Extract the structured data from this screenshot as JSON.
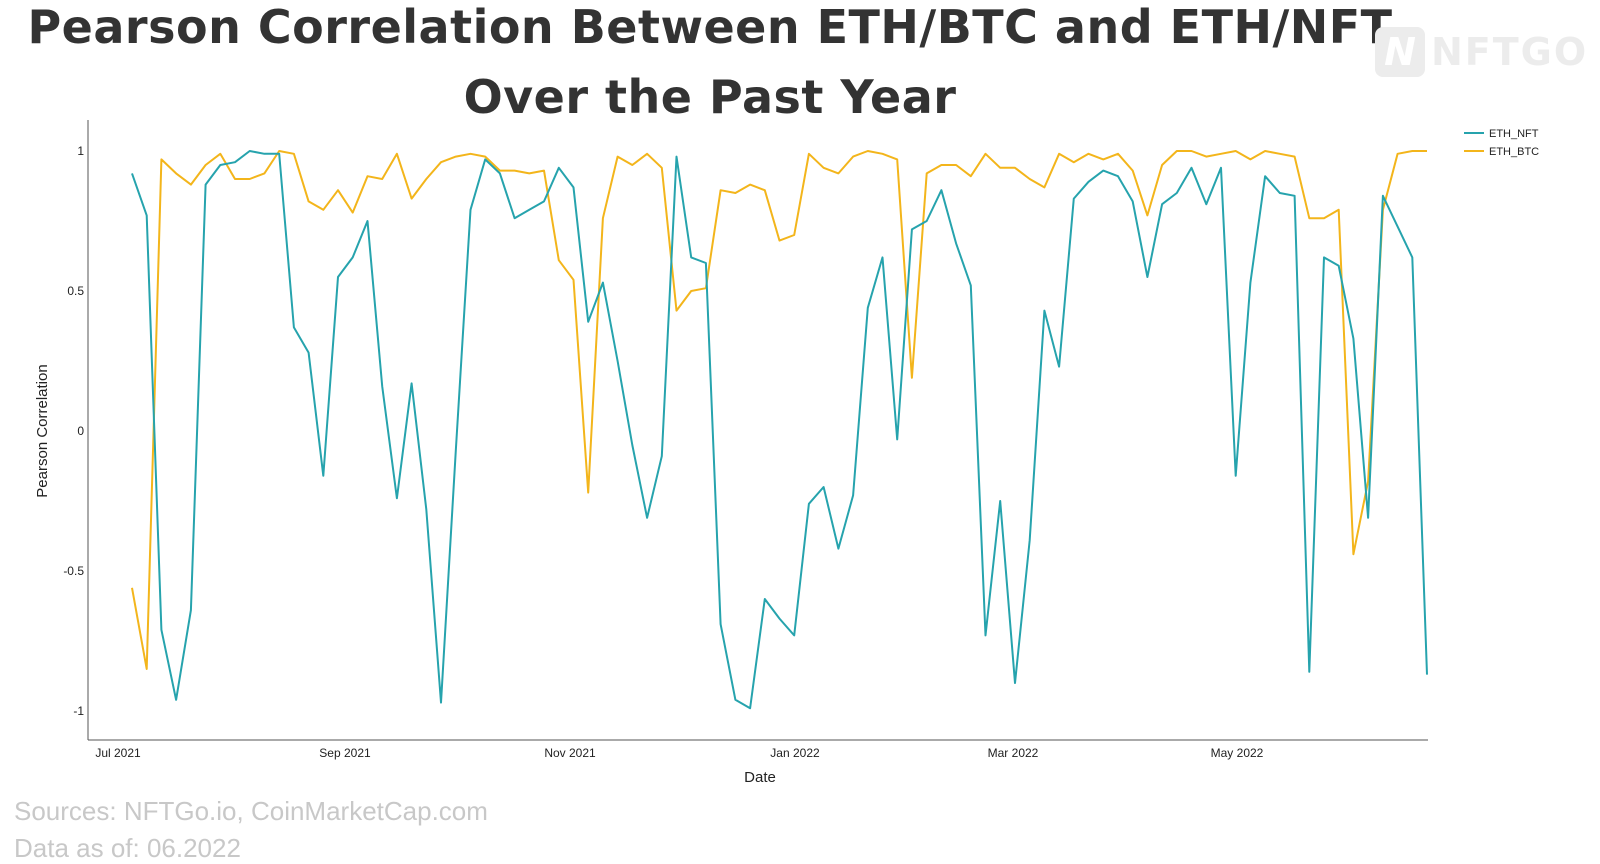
{
  "title_line1": "Pearson Correlation Between ETH/BTC and ETH/NFT",
  "title_line2": "Over the Past Year",
  "logo": {
    "text": "NFTGO",
    "mark": "N"
  },
  "footer": {
    "source": "Sources: NFTGo.io, CoinMarketCap.com",
    "as_of": "Data as of: 06.2022"
  },
  "chart_data": {
    "type": "line",
    "xlabel": "Date",
    "ylabel": "Pearson Correlation",
    "x_tick_labels": [
      "Jul 2021",
      "Sep 2021",
      "Nov 2021",
      "Jan 2022",
      "Mar 2022",
      "May 2022"
    ],
    "y_tick_labels": [
      "1",
      "0.5",
      "0",
      "-0.5",
      "-1"
    ],
    "ylim": [
      -1.1,
      1.1
    ],
    "legend": "top-right",
    "grid": false,
    "series": [
      {
        "name": "ETH_NFT",
        "color": "#26a3ad",
        "values": [
          0.92,
          0.77,
          -0.71,
          -0.96,
          -0.64,
          0.88,
          0.95,
          0.96,
          1.0,
          0.99,
          0.99,
          0.37,
          0.28,
          -0.16,
          0.55,
          0.62,
          0.75,
          0.16,
          -0.24,
          0.17,
          -0.28,
          -0.97,
          -0.07,
          0.79,
          0.97,
          0.92,
          0.76,
          0.79,
          0.82,
          0.94,
          0.87,
          0.39,
          0.53,
          0.25,
          -0.05,
          -0.31,
          -0.09,
          0.98,
          0.62,
          0.6,
          -0.69,
          -0.96,
          -0.99,
          -0.6,
          -0.67,
          -0.73,
          -0.26,
          -0.2,
          -0.42,
          -0.23,
          0.44,
          0.62,
          -0.03,
          0.72,
          0.75,
          0.86,
          0.67,
          0.52,
          -0.73,
          -0.25,
          -0.9,
          -0.39,
          0.43,
          0.23,
          0.83,
          0.89,
          0.93,
          0.91,
          0.82,
          0.55,
          0.81,
          0.85,
          0.94,
          0.81,
          0.94,
          -0.16,
          0.53,
          0.91,
          0.85,
          0.84,
          -0.86,
          0.62,
          0.59,
          0.33,
          -0.31,
          0.84,
          0.73,
          0.62,
          -0.87
        ]
      },
      {
        "name": "ETH_BTC",
        "color": "#f3b51b",
        "values": [
          -0.56,
          -0.85,
          0.97,
          0.92,
          0.88,
          0.95,
          0.99,
          0.9,
          0.9,
          0.92,
          1.0,
          0.99,
          0.82,
          0.79,
          0.86,
          0.78,
          0.91,
          0.9,
          0.99,
          0.83,
          0.9,
          0.96,
          0.98,
          0.99,
          0.98,
          0.93,
          0.93,
          0.92,
          0.93,
          0.61,
          0.54,
          -0.22,
          0.76,
          0.98,
          0.95,
          0.99,
          0.94,
          0.43,
          0.5,
          0.51,
          0.86,
          0.85,
          0.88,
          0.86,
          0.68,
          0.7,
          0.99,
          0.94,
          0.92,
          0.98,
          1.0,
          0.99,
          0.97,
          0.19,
          0.92,
          0.95,
          0.95,
          0.91,
          0.99,
          0.94,
          0.94,
          0.9,
          0.87,
          0.99,
          0.96,
          0.99,
          0.97,
          0.99,
          0.93,
          0.77,
          0.95,
          1.0,
          1.0,
          0.98,
          0.99,
          1.0,
          0.97,
          1.0,
          0.99,
          0.98,
          0.76,
          0.76,
          0.79,
          -0.44,
          -0.18,
          0.79,
          0.99,
          1.0,
          1.0
        ]
      }
    ]
  }
}
